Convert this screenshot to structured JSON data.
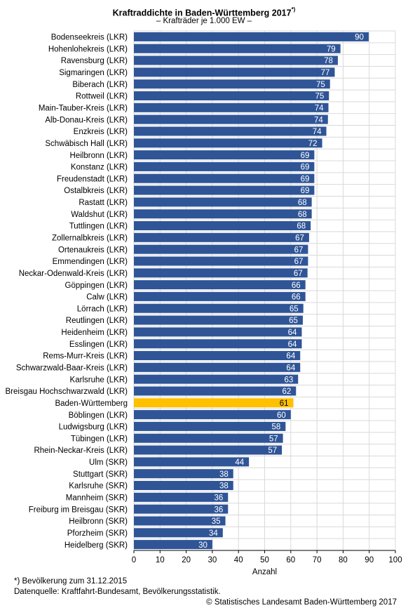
{
  "header": {
    "title": "Kraftraddichte in Baden-Württemberg 2017",
    "title_sup": "*)",
    "subtitle": "– Krafträder je 1.000 EW –"
  },
  "colors": {
    "bar": "#2f5597",
    "highlight": "#ffc000",
    "grid": "#d9d9d9",
    "bar_label": "#ffffff",
    "highlight_label": "#000000"
  },
  "chart_data": {
    "type": "bar",
    "orientation": "horizontal",
    "title": "Kraftraddichte in Baden-Württemberg 2017",
    "subtitle": "– Krafträder je 1.000 EW –",
    "xlabel": "Anzahl",
    "ylabel": "",
    "xlim": [
      0,
      100
    ],
    "xticks": [
      0,
      10,
      20,
      30,
      40,
      50,
      60,
      70,
      80,
      90,
      100
    ],
    "grid": true,
    "highlight_category": "Baden-Württemberg",
    "categories": [
      "Bodenseekreis (LKR)",
      "Hohenlohekreis (LKR)",
      "Ravensburg (LKR)",
      "Sigmaringen (LKR)",
      "Biberach (LKR)",
      "Rottweil (LKR)",
      "Main-Tauber-Kreis (LKR)",
      "Alb-Donau-Kreis (LKR)",
      "Enzkreis (LKR)",
      "Schwäbisch Hall (LKR)",
      "Heilbronn (LKR)",
      "Konstanz (LKR)",
      "Freudenstadt (LKR)",
      "Ostalbkreis (LKR)",
      "Rastatt (LKR)",
      "Waldshut (LKR)",
      "Tuttlingen (LKR)",
      "Zollernalbkreis (LKR)",
      "Ortenaukreis (LKR)",
      "Emmendingen (LKR)",
      "Neckar-Odenwald-Kreis (LKR)",
      "Göppingen (LKR)",
      "Calw (LKR)",
      "Lörrach (LKR)",
      "Reutlingen (LKR)",
      "Heidenheim (LKR)",
      "Esslingen (LKR)",
      "Rems-Murr-Kreis (LKR)",
      "Schwarzwald-Baar-Kreis (LKR)",
      "Karlsruhe (LKR)",
      "Breisgau Hochschwarzwald (LKR)",
      "Baden-Württemberg",
      "Böblingen (LKR)",
      "Ludwigsburg (LKR)",
      "Tübingen (LKR)",
      "Rhein-Neckar-Kreis (LKR)",
      "Ulm (SKR)",
      "Stuttgart (SKR)",
      "Karlsruhe (SKR)",
      "Mannheim (SKR)",
      "Freiburg im Breisgau (SKR)",
      "Heilbronn (SKR)",
      "Pforzheim (SKR)",
      "Heidelberg (SKR)"
    ],
    "values": [
      90,
      79,
      78,
      77,
      75,
      75,
      74,
      74,
      74,
      72,
      69,
      69,
      69,
      69,
      68,
      68,
      68,
      67,
      67,
      67,
      67,
      66,
      66,
      65,
      65,
      64,
      64,
      64,
      64,
      63,
      62,
      61,
      60,
      58,
      57,
      57,
      44,
      38,
      38,
      36,
      36,
      35,
      34,
      30
    ],
    "exact_values": [
      89.8,
      79.0,
      78.0,
      76.8,
      75.0,
      74.6,
      74.4,
      74.2,
      73.6,
      72.0,
      69.0,
      69.0,
      69.0,
      69.0,
      68.0,
      68.0,
      67.6,
      67.0,
      66.6,
      66.6,
      66.4,
      65.6,
      65.6,
      64.8,
      64.6,
      64.2,
      64.2,
      63.6,
      63.6,
      62.8,
      62.0,
      61.0,
      60.0,
      58.0,
      57.0,
      56.6,
      44.0,
      38.0,
      38.0,
      36.0,
      36.0,
      35.0,
      34.0,
      30.0
    ]
  },
  "footer": {
    "note": "*) Bevölkerung zum 31.12.2015",
    "source": "Datenquelle: Kraftfahrt-Bundesamt, Bevölkerungsstatistik.",
    "copyright": "© Statistisches Landesamt Baden-Württemberg 2017"
  }
}
